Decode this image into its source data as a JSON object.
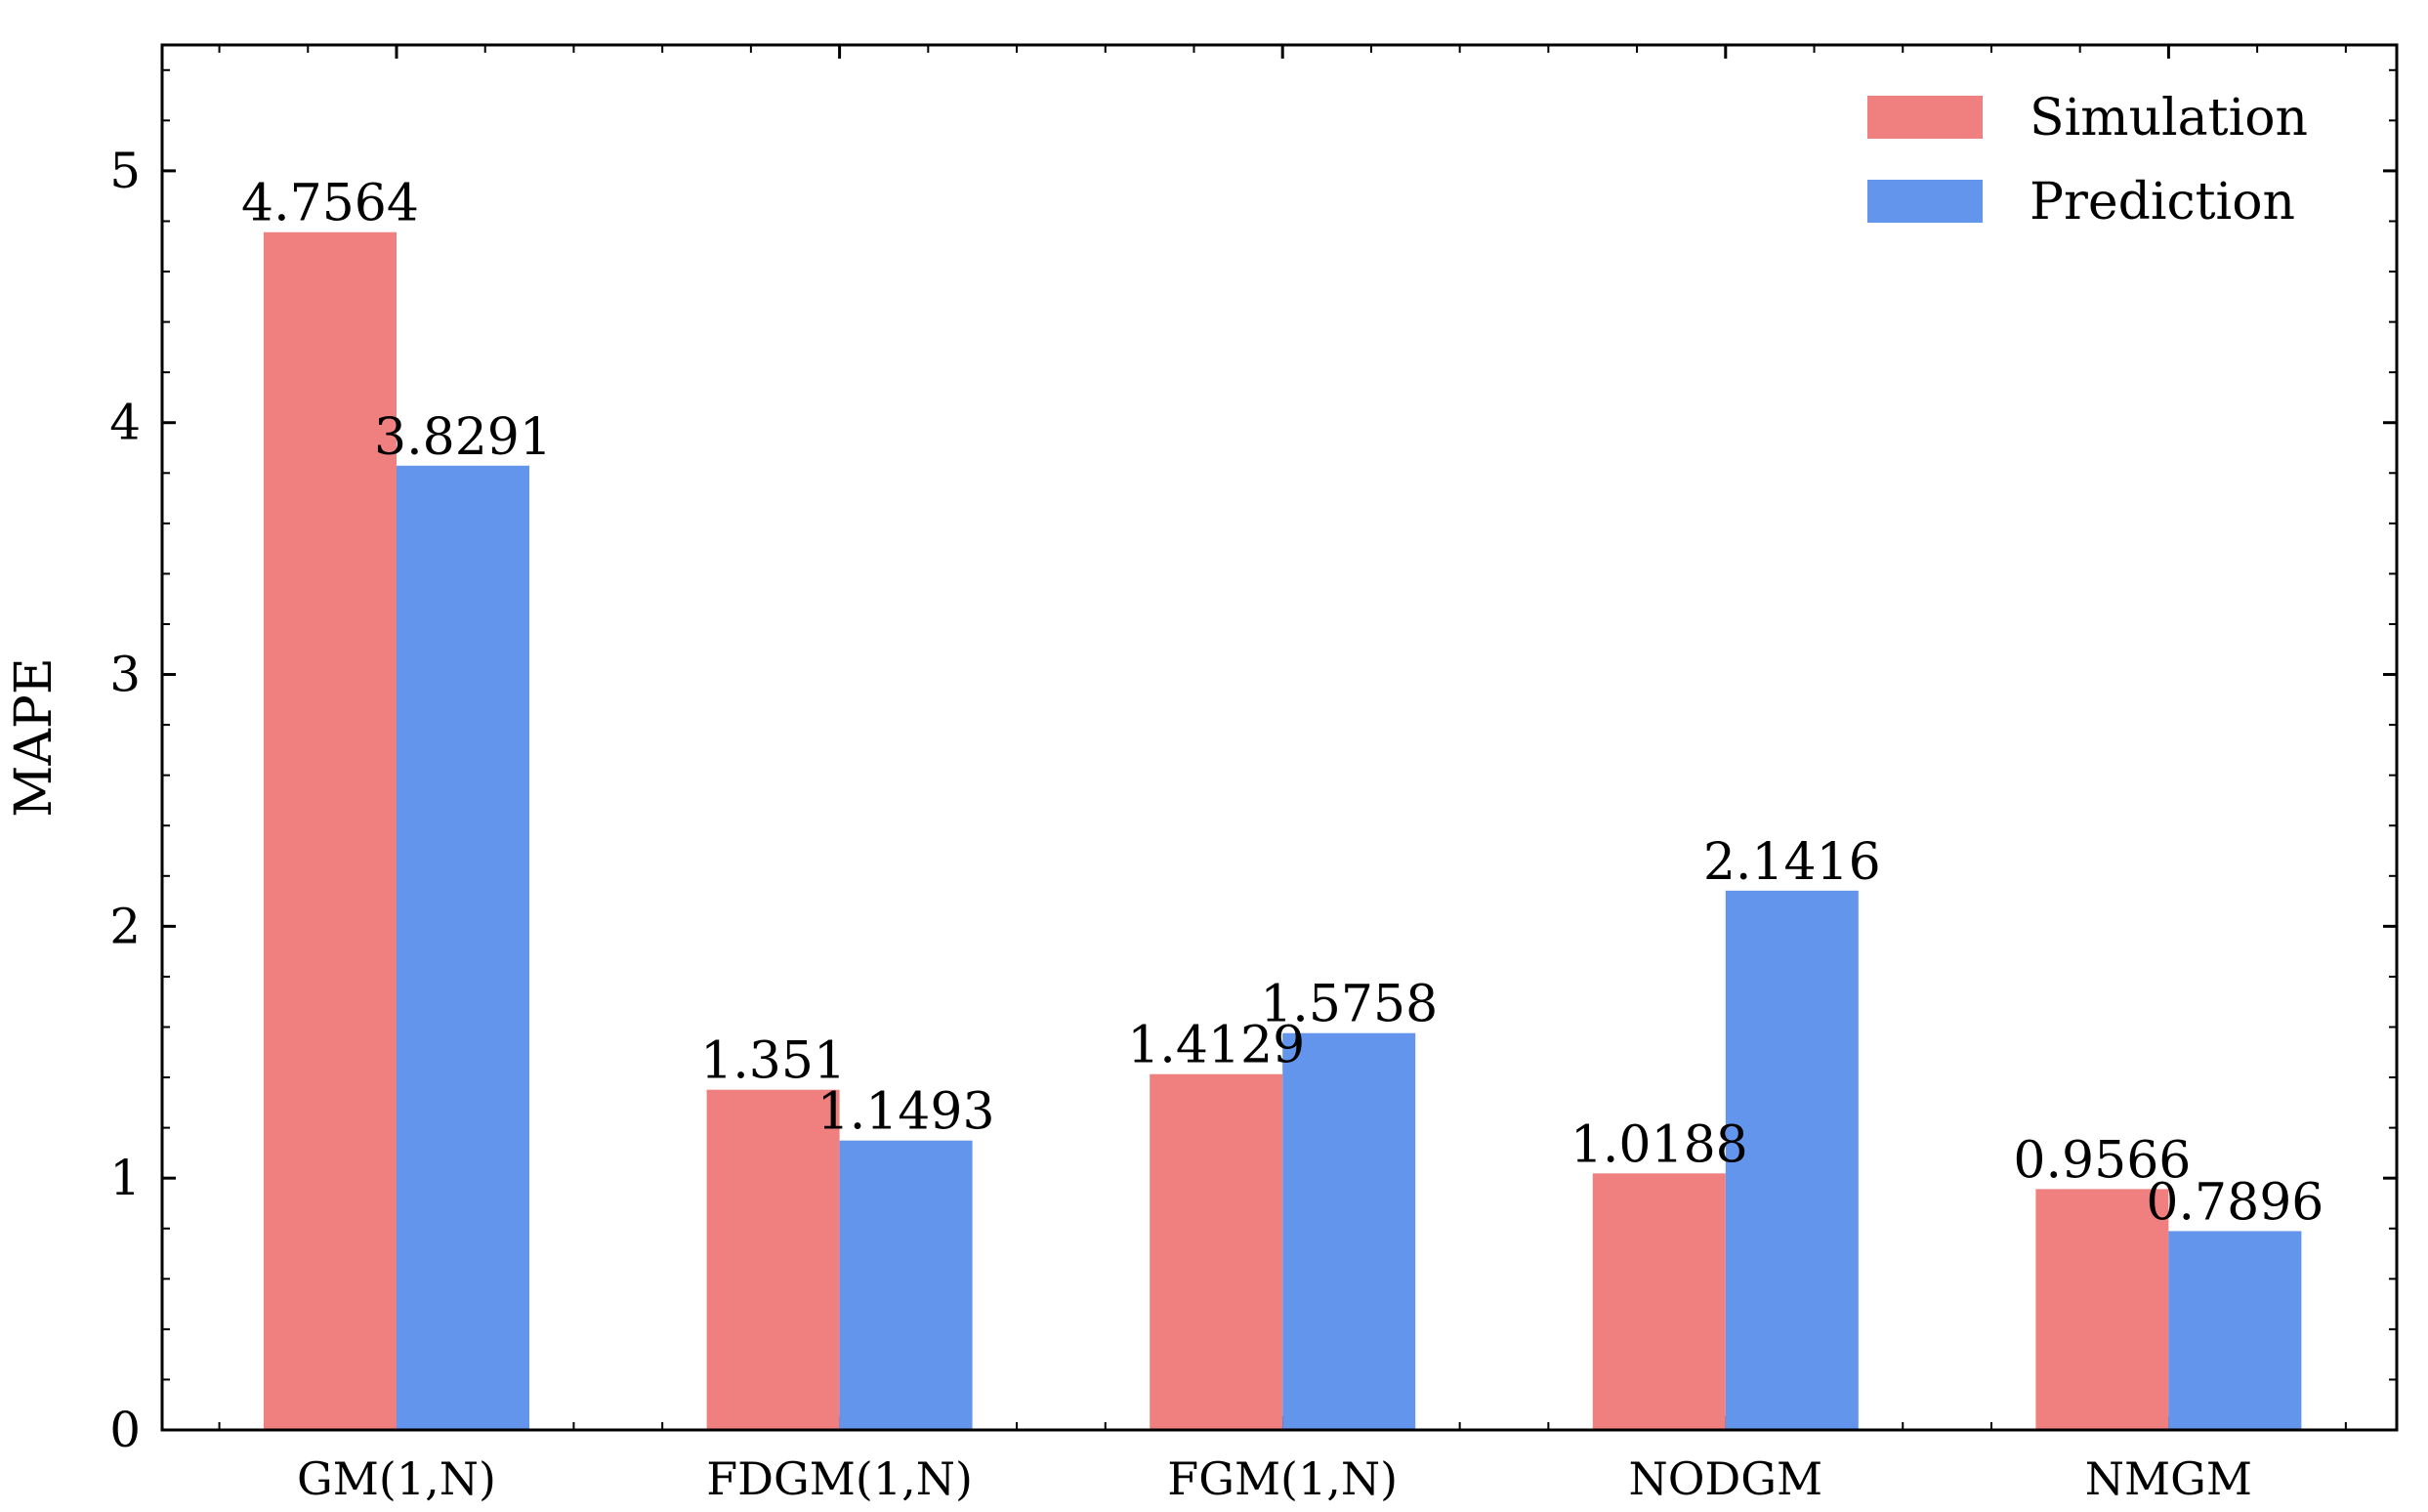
{
  "chart_data": {
    "type": "bar",
    "title": "",
    "xlabel": "",
    "ylabel": "MAPE",
    "ylim": [
      0,
      5.5
    ],
    "yticks": [
      0,
      1,
      2,
      3,
      4,
      5
    ],
    "yticks_labels": [
      "0",
      "1",
      "2",
      "3",
      "4",
      "5"
    ],
    "grid": false,
    "legend_position": "top-right",
    "categories": [
      "GM(1,N)",
      "FDGM(1,N)",
      "FGM(1,N)",
      "NODGM",
      "NMGM"
    ],
    "series": [
      {
        "name": "Simulation",
        "color": "#f08080",
        "values": [
          4.7564,
          1.351,
          1.4129,
          1.0188,
          0.9566
        ],
        "labels": [
          "4.7564",
          "1.351",
          "1.4129",
          "1.0188",
          "0.9566"
        ]
      },
      {
        "name": "Prediction",
        "color": "#6495ed",
        "values": [
          3.8291,
          1.1493,
          1.5758,
          2.1416,
          0.7896
        ],
        "labels": [
          "3.8291",
          "1.1493",
          "1.5758",
          "2.1416",
          "0.7896"
        ]
      }
    ]
  }
}
